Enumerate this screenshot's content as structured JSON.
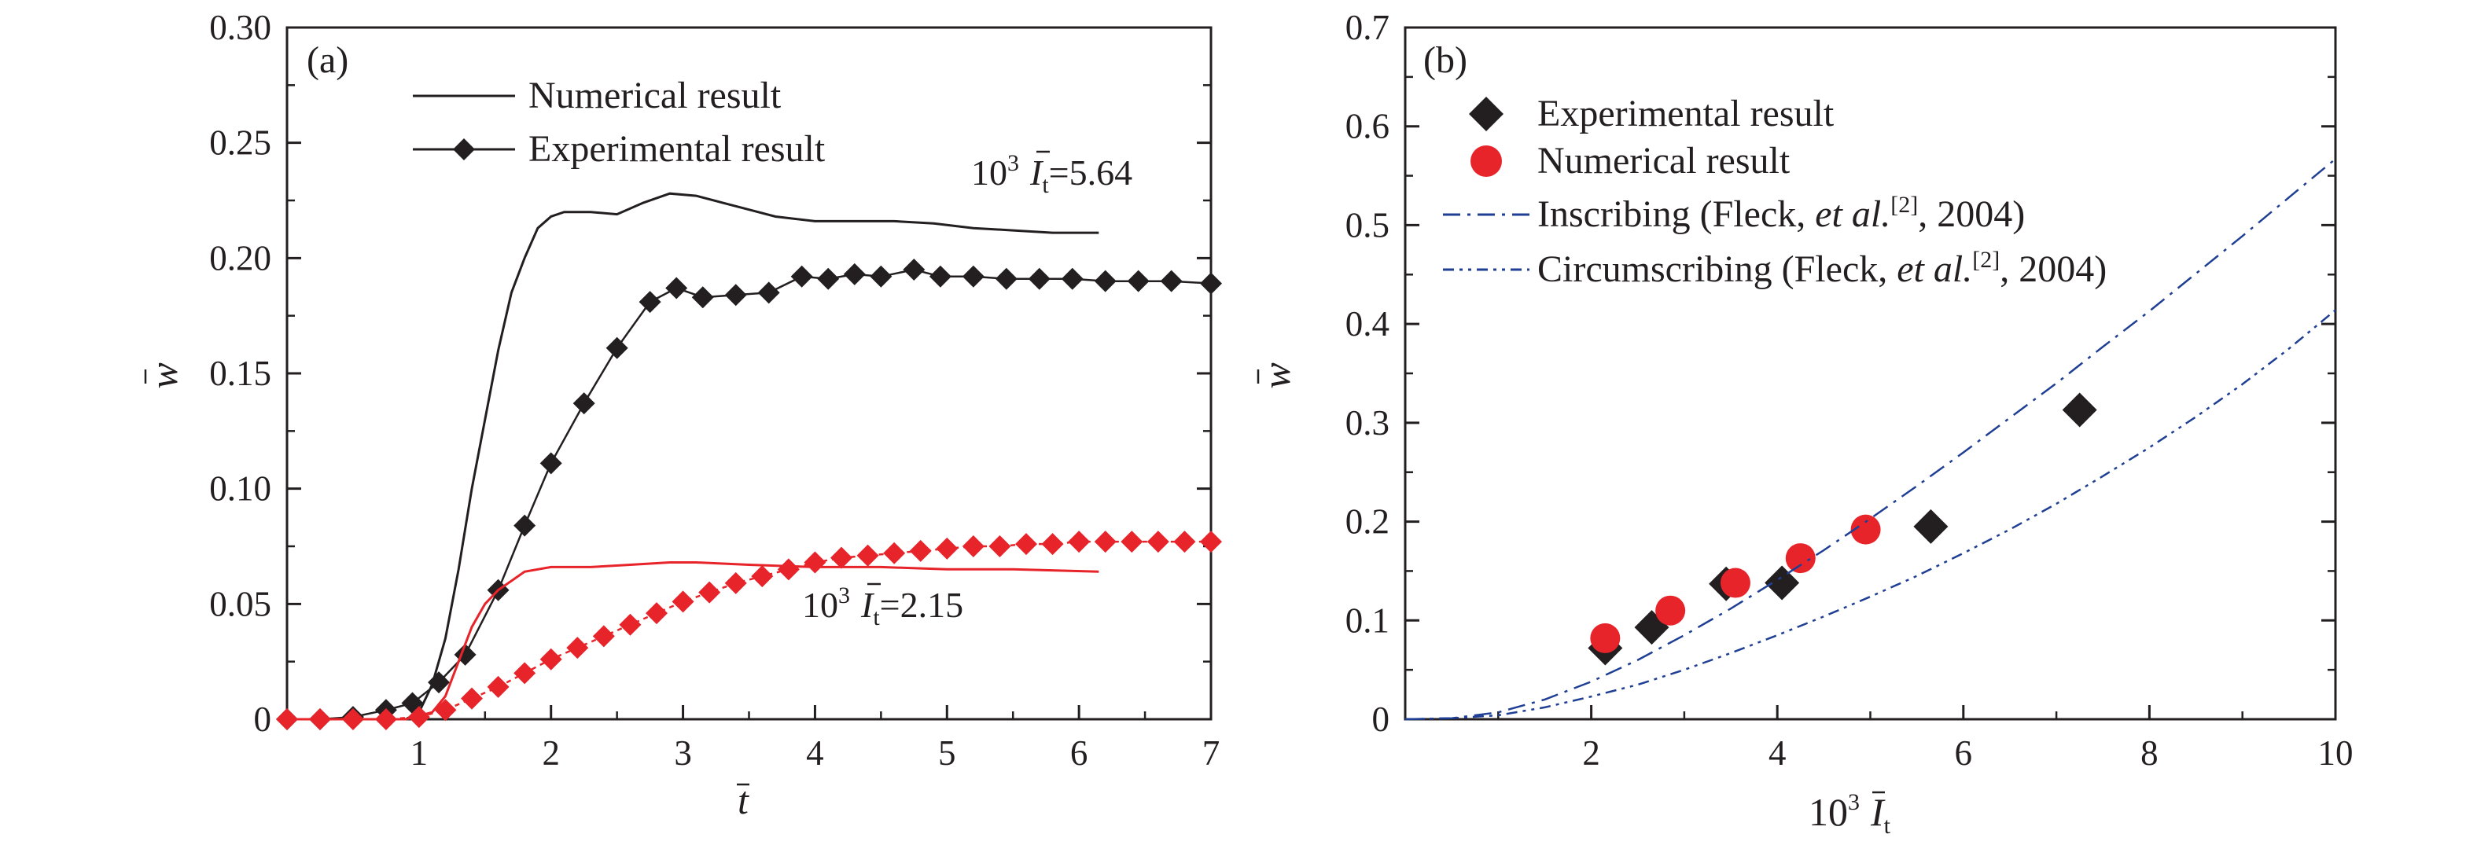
{
  "colors": {
    "black": "#231f20",
    "red": "#e8242b",
    "blue": "#1f3f94"
  },
  "chart_data": [
    {
      "type": "line",
      "panel_label": "(a)",
      "xlabel": "t",
      "ylabel": "w",
      "xlim": [
        0,
        7
      ],
      "ylim": [
        0,
        0.3
      ],
      "xticks": [
        "1",
        "2",
        "3",
        "4",
        "5",
        "6",
        "7"
      ],
      "yticks": [
        "0",
        "0.05",
        "0.10",
        "0.15",
        "0.20",
        "0.25",
        "0.30"
      ],
      "legend": {
        "position": "top-center",
        "entries": [
          "Numerical result",
          "Experimental result"
        ]
      },
      "annotations": [
        {
          "prefix": "10",
          "exp": "3",
          "var": "I",
          "sub": "t",
          "value": "=5.64"
        },
        {
          "prefix": "10",
          "exp": "3",
          "var": "I",
          "sub": "t",
          "value": "=2.15"
        }
      ],
      "series": [
        {
          "name": "Numerical result",
          "color": "black",
          "style": "line",
          "x": [
            0,
            0.5,
            0.9,
            1.0,
            1.1,
            1.2,
            1.3,
            1.4,
            1.5,
            1.6,
            1.7,
            1.8,
            1.9,
            2.0,
            2.1,
            2.3,
            2.5,
            2.7,
            2.9,
            3.1,
            3.3,
            3.5,
            3.7,
            4.0,
            4.3,
            4.6,
            4.9,
            5.2,
            5.5,
            5.8,
            6.15
          ],
          "y": [
            0,
            0,
            0,
            0.003,
            0.015,
            0.035,
            0.065,
            0.1,
            0.13,
            0.16,
            0.185,
            0.2,
            0.213,
            0.218,
            0.22,
            0.22,
            0.219,
            0.224,
            0.228,
            0.227,
            0.224,
            0.221,
            0.218,
            0.216,
            0.216,
            0.216,
            0.215,
            0.213,
            0.212,
            0.211,
            0.211
          ]
        },
        {
          "name": "Experimental result",
          "color": "black",
          "style": "line-diamond",
          "x": [
            0,
            0.25,
            0.5,
            0.75,
            0.95,
            1.15,
            1.35,
            1.6,
            1.8,
            2.0,
            2.25,
            2.5,
            2.75,
            2.95,
            3.15,
            3.4,
            3.65,
            3.9,
            4.1,
            4.3,
            4.5,
            4.75,
            4.95,
            5.2,
            5.45,
            5.7,
            5.95,
            6.2,
            6.45,
            6.7,
            7.0
          ],
          "y": [
            0,
            0,
            0.001,
            0.004,
            0.007,
            0.016,
            0.028,
            0.056,
            0.084,
            0.111,
            0.137,
            0.161,
            0.181,
            0.187,
            0.183,
            0.184,
            0.185,
            0.192,
            0.191,
            0.193,
            0.192,
            0.195,
            0.192,
            0.192,
            0.191,
            0.191,
            0.191,
            0.19,
            0.19,
            0.19,
            0.189
          ]
        },
        {
          "name": "Numerical result",
          "color": "red",
          "style": "line",
          "x": [
            0,
            0.9,
            1.1,
            1.2,
            1.3,
            1.4,
            1.5,
            1.6,
            1.7,
            1.8,
            2.0,
            2.3,
            2.6,
            2.9,
            3.1,
            3.5,
            4.0,
            4.5,
            5.0,
            5.5,
            6.15
          ],
          "y": [
            0,
            0,
            0.003,
            0.01,
            0.025,
            0.04,
            0.05,
            0.056,
            0.06,
            0.064,
            0.066,
            0.066,
            0.067,
            0.068,
            0.068,
            0.067,
            0.066,
            0.066,
            0.065,
            0.065,
            0.064
          ]
        },
        {
          "name": "Experimental result",
          "color": "red",
          "style": "line-diamond",
          "x": [
            0,
            0.25,
            0.5,
            0.75,
            1.0,
            1.2,
            1.4,
            1.6,
            1.8,
            2.0,
            2.2,
            2.4,
            2.6,
            2.8,
            3.0,
            3.2,
            3.4,
            3.6,
            3.8,
            4.0,
            4.2,
            4.4,
            4.6,
            4.8,
            5.0,
            5.2,
            5.4,
            5.6,
            5.8,
            6.0,
            6.2,
            6.4,
            6.6,
            6.8,
            7.0
          ],
          "y": [
            0,
            0,
            0,
            0,
            0.001,
            0.004,
            0.009,
            0.014,
            0.02,
            0.026,
            0.031,
            0.036,
            0.041,
            0.046,
            0.051,
            0.055,
            0.059,
            0.062,
            0.065,
            0.068,
            0.07,
            0.071,
            0.072,
            0.073,
            0.074,
            0.075,
            0.075,
            0.076,
            0.076,
            0.077,
            0.077,
            0.077,
            0.077,
            0.077,
            0.077
          ]
        }
      ]
    },
    {
      "type": "scatter",
      "panel_label": "(b)",
      "xlabel": "10³ I_t",
      "ylabel": "w",
      "xlim": [
        0,
        10
      ],
      "ylim": [
        0,
        0.7
      ],
      "xticks": [
        "2",
        "4",
        "6",
        "8",
        "10"
      ],
      "yticks": [
        "0",
        "0.1",
        "0.2",
        "0.3",
        "0.4",
        "0.5",
        "0.6",
        "0.7"
      ],
      "legend": {
        "position": "top-left",
        "entries": [
          {
            "text": "Experimental result"
          },
          {
            "text": "Numerical result"
          },
          {
            "text": "Inscribing (Fleck, ",
            "italic": "et al.",
            "ref": "[2]",
            "tail": ", 2004)"
          },
          {
            "text": "Circumscribing (Fleck, ",
            "italic": "et al.",
            "ref": "[2]",
            "tail": ", 2004)"
          }
        ]
      },
      "series": [
        {
          "name": "Experimental result",
          "color": "black",
          "style": "diamond",
          "x": [
            2.15,
            2.65,
            3.45,
            4.05,
            5.65,
            7.25
          ],
          "y": [
            0.072,
            0.093,
            0.137,
            0.138,
            0.195,
            0.313
          ]
        },
        {
          "name": "Numerical result",
          "color": "red",
          "style": "circle",
          "x": [
            2.15,
            2.85,
            3.55,
            4.25,
            4.95
          ],
          "y": [
            0.082,
            0.11,
            0.138,
            0.163,
            0.192
          ]
        },
        {
          "name": "Inscribing (Fleck, et al.[2], 2004)",
          "color": "blue",
          "style": "dashdot",
          "x": [
            0,
            0.5,
            1,
            1.5,
            2,
            2.5,
            3,
            3.5,
            4,
            4.5,
            5,
            5.5,
            6,
            6.5,
            7,
            7.5,
            8,
            8.5,
            9,
            9.5,
            10
          ],
          "y": [
            0,
            0.001,
            0.007,
            0.02,
            0.038,
            0.06,
            0.085,
            0.112,
            0.141,
            0.171,
            0.203,
            0.236,
            0.27,
            0.305,
            0.34,
            0.377,
            0.413,
            0.451,
            0.489,
            0.528,
            0.567
          ]
        },
        {
          "name": "Circumscribing (Fleck, et al.[2], 2004)",
          "color": "blue",
          "style": "dashdotdot",
          "x": [
            0,
            0.5,
            1,
            1.5,
            2,
            2.5,
            3,
            3.5,
            4,
            4.5,
            5,
            5.5,
            6,
            6.5,
            7,
            7.5,
            8,
            8.5,
            9,
            9.5,
            10
          ],
          "y": [
            0,
            0.001,
            0.004,
            0.012,
            0.023,
            0.035,
            0.05,
            0.067,
            0.085,
            0.104,
            0.124,
            0.145,
            0.168,
            0.192,
            0.218,
            0.246,
            0.275,
            0.306,
            0.339,
            0.375,
            0.414
          ]
        }
      ]
    }
  ]
}
